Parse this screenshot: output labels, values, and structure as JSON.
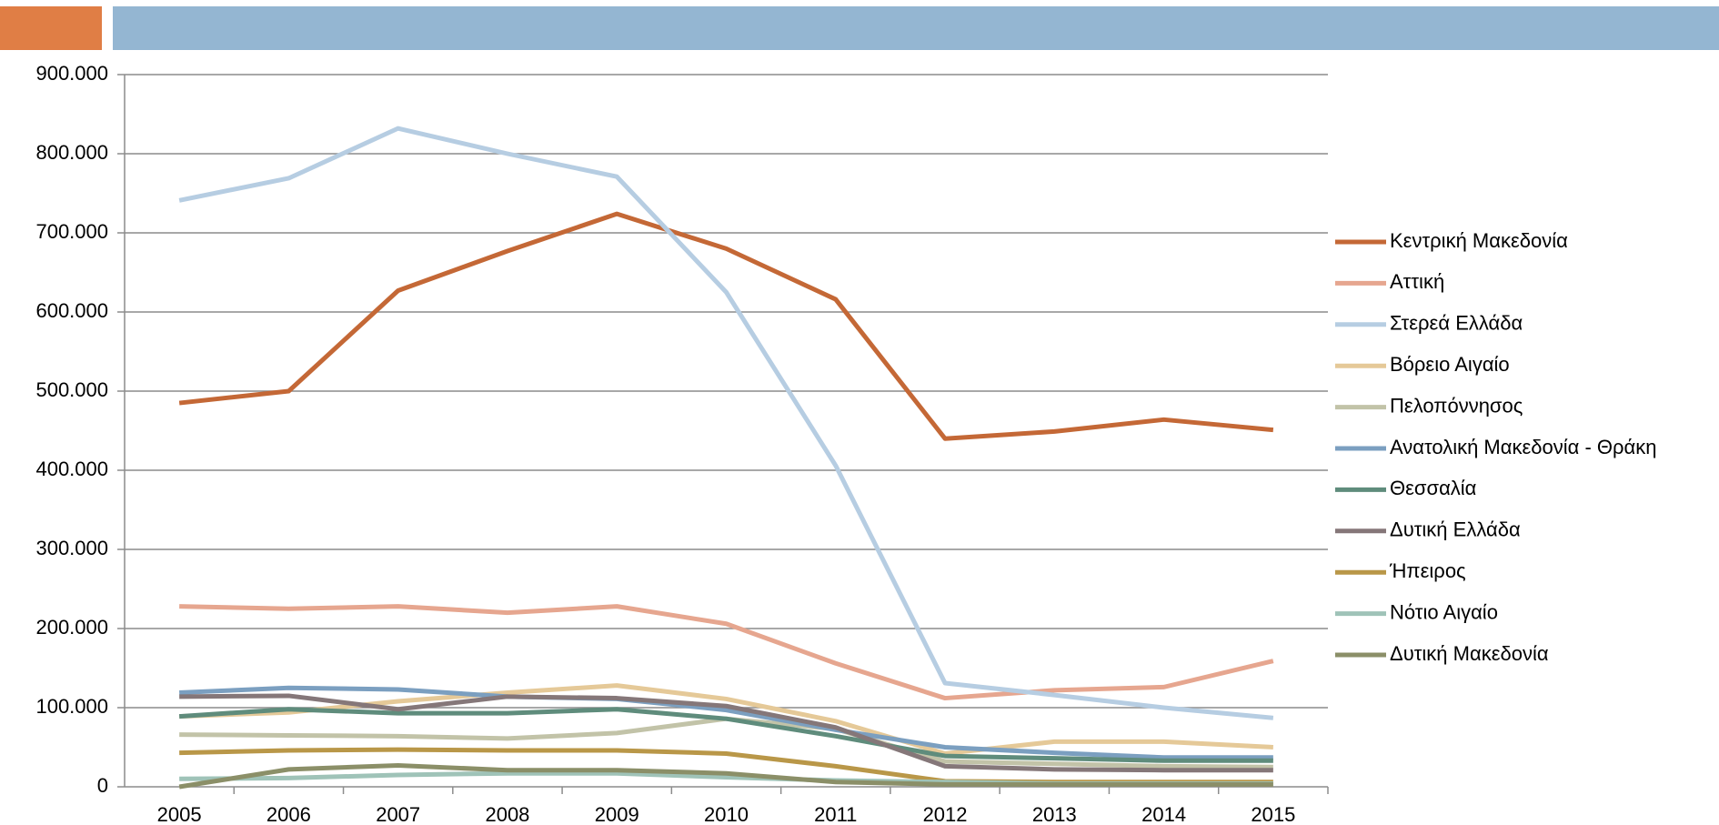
{
  "chart_data": {
    "type": "line",
    "categories": [
      "2005",
      "2006",
      "2007",
      "2008",
      "2009",
      "2010",
      "2011",
      "2012",
      "2013",
      "2014",
      "2015"
    ],
    "series": [
      {
        "name": "Κεντρική Μακεδονία",
        "color": "#c46836",
        "values": [
          485000,
          500000,
          627000,
          677000,
          724000,
          680000,
          616000,
          440000,
          449000,
          464000,
          451000
        ]
      },
      {
        "name": "Αττική",
        "color": "#e6a68f",
        "values": [
          228000,
          225000,
          228000,
          220000,
          228000,
          206000,
          156000,
          112000,
          122000,
          126000,
          159000
        ]
      },
      {
        "name": "Στερεά Ελλάδα",
        "color": "#b6cde2",
        "values": [
          741000,
          769000,
          832000,
          800000,
          771000,
          625000,
          406000,
          131000,
          116000,
          100000,
          87000
        ]
      },
      {
        "name": "Βόρειο Αιγαίο",
        "color": "#e5c998",
        "values": [
          89000,
          94000,
          108000,
          119000,
          128000,
          111000,
          83000,
          42000,
          57000,
          57000,
          50000
        ]
      },
      {
        "name": "Πελοπόννησος",
        "color": "#c2c3a8",
        "values": [
          66000,
          65000,
          64000,
          61000,
          68000,
          86000,
          73000,
          32000,
          29000,
          26000,
          25000
        ]
      },
      {
        "name": "Ανατολική Μακεδονία - Θράκη",
        "color": "#7b9fc0",
        "values": [
          119000,
          125000,
          123000,
          114000,
          111000,
          97000,
          72000,
          50000,
          43000,
          37000,
          37000
        ]
      },
      {
        "name": "Θεσσαλία",
        "color": "#5f8c7c",
        "values": [
          89000,
          98000,
          93000,
          93000,
          98000,
          86000,
          64000,
          39000,
          36000,
          33000,
          33000
        ]
      },
      {
        "name": "Δυτική Ελλάδα",
        "color": "#857779",
        "values": [
          114000,
          115000,
          98000,
          114000,
          112000,
          102000,
          75000,
          26000,
          22000,
          21000,
          21000
        ]
      },
      {
        "name": "Ήπειρος",
        "color": "#b99748",
        "values": [
          43000,
          46000,
          47000,
          46000,
          46000,
          42000,
          26000,
          7000,
          6000,
          6000,
          6000
        ]
      },
      {
        "name": "Νότιο Αιγαίο",
        "color": "#9fc3b8",
        "values": [
          10000,
          11000,
          15000,
          17000,
          17000,
          12000,
          8000,
          6000,
          4000,
          4000,
          4000
        ]
      },
      {
        "name": "Δυτική Μακεδονία",
        "color": "#8b8f68",
        "values": [
          0,
          22000,
          27000,
          21000,
          21000,
          17000,
          6000,
          3000,
          3000,
          3000,
          3000
        ]
      }
    ],
    "ylim": [
      0,
      900000
    ],
    "yticks": [
      0,
      {
        "value": 100000,
        "label": "100.000"
      },
      {
        "value": 200000,
        "label": "200.000"
      },
      {
        "value": 300000,
        "label": "300.000"
      },
      {
        "value": 400000,
        "label": "400.000"
      },
      {
        "value": 500000,
        "label": "500.000"
      },
      {
        "value": 600000,
        "label": "600.000"
      },
      {
        "value": 700000,
        "label": "700.000"
      },
      {
        "value": 800000,
        "label": "800.000"
      },
      {
        "value": 900000,
        "label": "900.000"
      }
    ],
    "grid": true,
    "legend": "right"
  }
}
